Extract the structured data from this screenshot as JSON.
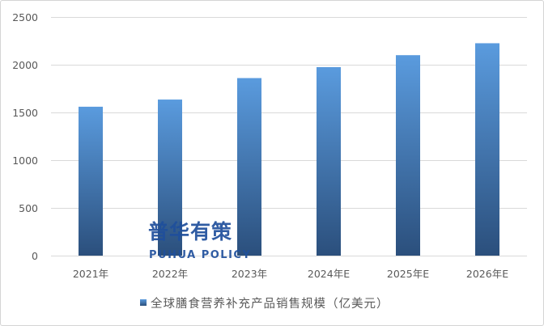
{
  "chart_data": {
    "type": "bar",
    "categories": [
      "2021年",
      "2022年",
      "2023年",
      "2024年E",
      "2025年E",
      "2026年E"
    ],
    "series": [
      {
        "name": "全球膳食营养补充产品销售规模（亿美元）",
        "values": [
          1560,
          1635,
          1860,
          1975,
          2100,
          2225
        ]
      }
    ],
    "ylim": [
      0,
      2500
    ],
    "yticks": [
      0,
      500,
      1000,
      1500,
      2000,
      2500
    ],
    "grid": true,
    "legend": "bottom-center",
    "colors": {
      "bar_top": "#5A9BDE",
      "bar_bottom": "#2B4F7C",
      "grid": "#D9D9D9",
      "text": "#595959"
    }
  },
  "watermark": {
    "cn": "普华有策",
    "en": "PUHUA POLICY",
    "color": "#1F4F9C"
  }
}
